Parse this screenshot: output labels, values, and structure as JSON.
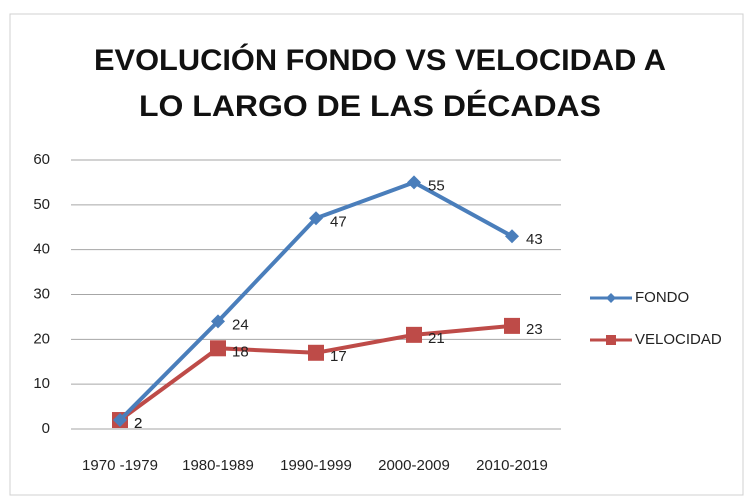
{
  "chart_data": {
    "type": "line",
    "title": [
      "EVOLUCIÓN FONDO VS VELOCIDAD A",
      "LO LARGO DE LAS DÉCADAS"
    ],
    "categories": [
      "1970 -1979",
      "1980-1989",
      "1990-1999",
      "2000-2009",
      "2010-2019"
    ],
    "series": [
      {
        "name": "FONDO",
        "color": "#4a7ebb",
        "marker": "diamond",
        "values": [
          2,
          24,
          47,
          55,
          43
        ]
      },
      {
        "name": "VELOCIDAD",
        "color": "#be4b48",
        "marker": "square",
        "values": [
          2,
          18,
          17,
          21,
          23
        ]
      }
    ],
    "ylim": [
      0,
      60
    ],
    "yticks": [
      0,
      10,
      20,
      30,
      40,
      50,
      60
    ],
    "grid": true,
    "legend": "right"
  }
}
